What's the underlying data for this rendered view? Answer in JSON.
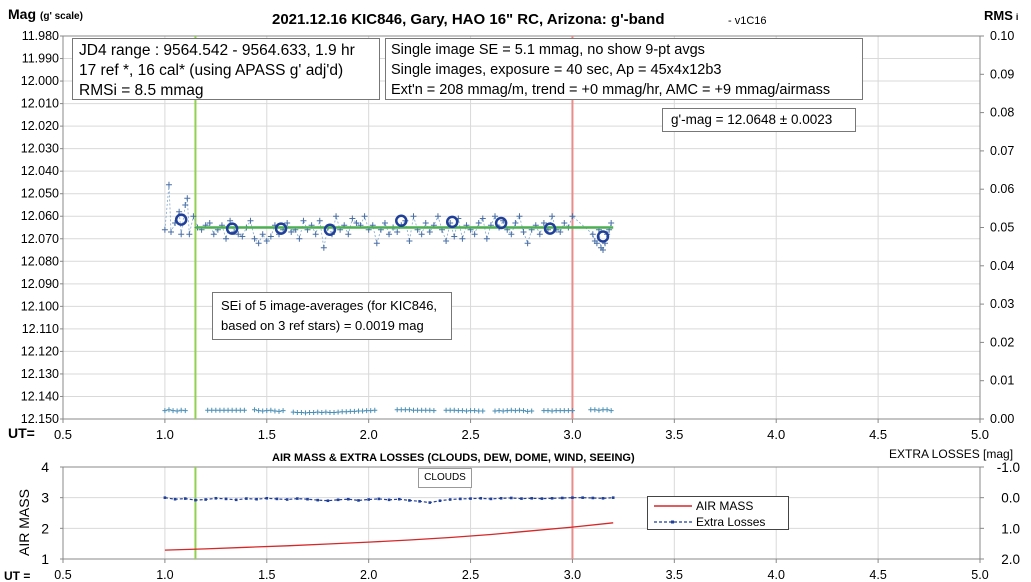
{
  "chart_data": [
    {
      "type": "scatter",
      "title": "2021.12.16 KIC846, Gary, HAO 16\" RC, Arizona: g'-band",
      "version": "- v1C16",
      "ylabel": "Mag",
      "ylabel_sub": "(g' scale)",
      "y2label": "RMS",
      "y2label_sub": "i",
      "xlabel": "UT=",
      "xlim": [
        0.5,
        5.0
      ],
      "xticks": [
        "0.5",
        "1.0",
        "1.5",
        "2.0",
        "2.5",
        "3.0",
        "3.5",
        "4.0",
        "4.5",
        "5.0"
      ],
      "ylim": [
        11.98,
        12.15
      ],
      "y_reversed": true,
      "yticks": [
        "11.980",
        "11.990",
        "12.000",
        "12.010",
        "12.020",
        "12.030",
        "12.040",
        "12.050",
        "12.060",
        "12.070",
        "12.080",
        "12.090",
        "12.100",
        "12.110",
        "12.120",
        "12.130",
        "12.140",
        "12.150"
      ],
      "y2lim": [
        0.0,
        0.1
      ],
      "y2ticks": [
        "0.10",
        "0.09",
        "0.08",
        "0.07",
        "0.06",
        "0.05",
        "0.04",
        "0.03",
        "0.02",
        "0.01",
        "0.00"
      ],
      "vlines": [
        {
          "x": 1.15,
          "color": "#92d050"
        },
        {
          "x": 3.0,
          "color": "#e98c8c"
        }
      ],
      "fit_line": {
        "x": [
          1.15,
          3.2
        ],
        "y": [
          12.065,
          12.065
        ],
        "color": "#4caf50"
      },
      "series": [
        {
          "kind": "single_images",
          "color": "#4a6fa5",
          "x": [
            1.0,
            1.02,
            1.03,
            1.05,
            1.07,
            1.08,
            1.1,
            1.11,
            1.12,
            1.14,
            1.16,
            1.18,
            1.2,
            1.22,
            1.24,
            1.26,
            1.28,
            1.3,
            1.32,
            1.34,
            1.36,
            1.38,
            1.4,
            1.42,
            1.44,
            1.46,
            1.48,
            1.5,
            1.52,
            1.54,
            1.56,
            1.58,
            1.6,
            1.62,
            1.64,
            1.66,
            1.68,
            1.7,
            1.72,
            1.74,
            1.76,
            1.78,
            1.8,
            1.82,
            1.84,
            1.86,
            1.88,
            1.9,
            1.92,
            1.94,
            1.96,
            1.98,
            2.0,
            2.02,
            2.04,
            2.06,
            2.08,
            2.1,
            2.12,
            2.14,
            2.16,
            2.18,
            2.2,
            2.22,
            2.24,
            2.26,
            2.28,
            2.3,
            2.32,
            2.34,
            2.36,
            2.38,
            2.4,
            2.42,
            2.44,
            2.46,
            2.48,
            2.5,
            2.52,
            2.54,
            2.56,
            2.58,
            2.6,
            2.62,
            2.64,
            2.66,
            2.68,
            2.7,
            2.72,
            2.74,
            2.76,
            2.78,
            2.8,
            2.82,
            2.84,
            2.86,
            2.88,
            2.9,
            2.92,
            2.94,
            2.96,
            2.98,
            3.0,
            3.1,
            3.11,
            3.12,
            3.13,
            3.14,
            3.15,
            3.16,
            3.17,
            3.18,
            3.19
          ],
          "y": [
            12.066,
            12.046,
            12.067,
            12.063,
            12.058,
            12.068,
            12.055,
            12.052,
            12.068,
            12.06,
            12.065,
            12.066,
            12.064,
            12.063,
            12.068,
            12.066,
            12.064,
            12.07,
            12.062,
            12.067,
            12.068,
            12.069,
            12.065,
            12.062,
            12.07,
            12.072,
            12.068,
            12.071,
            12.069,
            12.064,
            12.068,
            12.066,
            12.063,
            12.067,
            12.066,
            12.07,
            12.062,
            12.066,
            12.064,
            12.068,
            12.062,
            12.074,
            12.065,
            12.068,
            12.06,
            12.066,
            12.064,
            12.068,
            12.061,
            12.063,
            12.064,
            12.06,
            12.066,
            12.064,
            12.072,
            12.066,
            12.063,
            12.068,
            12.065,
            12.067,
            12.064,
            12.062,
            12.071,
            12.06,
            12.066,
            12.068,
            12.063,
            12.067,
            12.064,
            12.06,
            12.066,
            12.071,
            12.063,
            12.069,
            12.061,
            12.07,
            12.064,
            12.066,
            12.068,
            12.063,
            12.061,
            12.07,
            12.064,
            12.06,
            12.065,
            12.062,
            12.066,
            12.068,
            12.063,
            12.06,
            12.067,
            12.072,
            12.066,
            12.064,
            12.068,
            12.063,
            12.066,
            12.06,
            12.066,
            12.067,
            12.063,
            12.065,
            12.06,
            12.068,
            12.071,
            12.072,
            12.066,
            12.074,
            12.075,
            12.072,
            12.068,
            12.066,
            12.063
          ]
        },
        {
          "kind": "9pt_averages",
          "color": "#1f3f99",
          "x": [
            1.08,
            1.33,
            1.57,
            1.81,
            2.16,
            2.41,
            2.65,
            2.89,
            3.15
          ],
          "y": [
            12.0615,
            12.0655,
            12.0655,
            12.066,
            12.062,
            12.0625,
            12.063,
            12.0655,
            12.069
          ]
        },
        {
          "kind": "rms_i",
          "axis": "y2",
          "color": "#4a8fb5",
          "x": [
            1.0,
            1.02,
            1.04,
            1.06,
            1.08,
            1.1,
            1.21,
            1.23,
            1.25,
            1.27,
            1.29,
            1.31,
            1.33,
            1.35,
            1.37,
            1.39,
            1.44,
            1.46,
            1.48,
            1.5,
            1.52,
            1.54,
            1.56,
            1.58,
            1.63,
            1.65,
            1.67,
            1.69,
            1.71,
            1.73,
            1.75,
            1.77,
            1.79,
            1.81,
            1.83,
            1.85,
            1.87,
            1.89,
            1.91,
            1.93,
            1.95,
            1.97,
            1.99,
            2.01,
            2.03,
            2.14,
            2.16,
            2.18,
            2.2,
            2.22,
            2.24,
            2.26,
            2.28,
            2.3,
            2.32,
            2.38,
            2.4,
            2.42,
            2.44,
            2.46,
            2.48,
            2.5,
            2.52,
            2.54,
            2.56,
            2.62,
            2.64,
            2.66,
            2.68,
            2.7,
            2.72,
            2.74,
            2.76,
            2.78,
            2.8,
            2.86,
            2.88,
            2.9,
            2.92,
            2.94,
            2.96,
            2.98,
            3.0,
            3.09,
            3.11,
            3.13,
            3.15,
            3.17,
            3.19
          ],
          "y": [
            0.0022,
            0.0024,
            0.0022,
            0.0021,
            0.0023,
            0.0022,
            0.0023,
            0.0023,
            0.0023,
            0.0023,
            0.0023,
            0.0023,
            0.0023,
            0.0023,
            0.0023,
            0.0023,
            0.0024,
            0.0022,
            0.0021,
            0.0022,
            0.0023,
            0.0021,
            0.002,
            0.0022,
            0.0018,
            0.0017,
            0.0017,
            0.0016,
            0.0017,
            0.0017,
            0.0018,
            0.0017,
            0.0018,
            0.0017,
            0.0017,
            0.0018,
            0.0019,
            0.0019,
            0.002,
            0.002,
            0.0021,
            0.0021,
            0.0022,
            0.0022,
            0.0023,
            0.0024,
            0.0024,
            0.0024,
            0.0024,
            0.0023,
            0.0023,
            0.0023,
            0.0023,
            0.0023,
            0.0022,
            0.0023,
            0.0023,
            0.0023,
            0.0022,
            0.0022,
            0.0021,
            0.0022,
            0.0022,
            0.0021,
            0.0021,
            0.0021,
            0.0022,
            0.0021,
            0.0022,
            0.0023,
            0.0022,
            0.0023,
            0.0022,
            0.002,
            0.0021,
            0.0022,
            0.0022,
            0.0021,
            0.0022,
            0.0022,
            0.0022,
            0.0022,
            0.0022,
            0.0024,
            0.0024,
            0.0023,
            0.0024,
            0.0024,
            0.0022
          ]
        }
      ]
    },
    {
      "type": "line",
      "title": "AIR MASS & EXTRA LOSSES (CLOUDS, DEW, DOME, WIND, SEEING)",
      "ylabel": "AIR MASS",
      "y2label": "EXTRA LOSSES [mag]",
      "xlabel": "UT =",
      "xlim": [
        0.5,
        5.0
      ],
      "xticks": [
        "0.5",
        "1.0",
        "1.5",
        "2.0",
        "2.5",
        "3.0",
        "3.5",
        "4.0",
        "4.5",
        "5.0"
      ],
      "ylim": [
        1,
        4
      ],
      "yticks": [
        "4",
        "3",
        "2",
        "1"
      ],
      "y2lim": [
        -1.0,
        2.0
      ],
      "y2_reversed": true,
      "y2ticks": [
        "-1.0",
        "0.0",
        "1.0",
        "2.0"
      ],
      "vlines": [
        {
          "x": 1.15,
          "color": "#92d050"
        },
        {
          "x": 3.0,
          "color": "#e98c8c"
        }
      ],
      "series": [
        {
          "name": "AIR MASS",
          "color": "#d62728",
          "x": [
            1.0,
            1.2,
            1.4,
            1.6,
            1.8,
            2.0,
            2.2,
            2.4,
            2.6,
            2.8,
            3.0,
            3.2
          ],
          "y": [
            1.29,
            1.33,
            1.38,
            1.43,
            1.49,
            1.55,
            1.62,
            1.7,
            1.8,
            1.92,
            2.04,
            2.18
          ]
        },
        {
          "name": "Extra Losses",
          "color": "#1f3f99",
          "axis": "y2",
          "x": [
            1.0,
            1.05,
            1.1,
            1.15,
            1.2,
            1.25,
            1.3,
            1.35,
            1.4,
            1.45,
            1.5,
            1.55,
            1.6,
            1.65,
            1.7,
            1.75,
            1.8,
            1.85,
            1.9,
            1.95,
            2.0,
            2.05,
            2.1,
            2.15,
            2.2,
            2.25,
            2.3,
            2.35,
            2.4,
            2.45,
            2.5,
            2.55,
            2.6,
            2.65,
            2.7,
            2.75,
            2.8,
            2.85,
            2.9,
            2.95,
            3.0,
            3.05,
            3.1,
            3.15,
            3.2
          ],
          "y": [
            0.0,
            0.05,
            0.03,
            0.08,
            0.06,
            0.02,
            0.04,
            0.07,
            0.03,
            0.05,
            0.02,
            0.04,
            0.06,
            0.03,
            0.05,
            0.08,
            0.1,
            0.07,
            0.05,
            0.09,
            0.06,
            0.04,
            0.07,
            0.05,
            0.09,
            0.12,
            0.16,
            0.1,
            0.06,
            0.04,
            0.03,
            0.02,
            0.04,
            0.02,
            0.01,
            0.03,
            0.02,
            0.03,
            0.02,
            0.01,
            0.0,
            0.0,
            0.01,
            0.02,
            0.0
          ]
        }
      ],
      "legend": "right",
      "annotation": "CLOUDS"
    }
  ],
  "boxes": {
    "jd": {
      "line1": "JD4 range : 9564.542 - 9564.633,  1.9  hr",
      "line2": "17 ref *, 16 cal* (using APASS g' adj'd)",
      "line3": "RMSi = 8.5 mmag"
    },
    "se": {
      "line1": "Single image SE = 5.1 mmag, no show  9-pt avgs",
      "line2": "Single images, exposure = 40 sec, Ap = 45x4x12b3",
      "line3": "Ext'n = 208 mmag/m, trend = +0 mmag/hr, AMC = +9 mmag/airmass"
    },
    "gmag": "g'-mag = 12.0648 ± 0.0023",
    "sei": {
      "line1": "SEi of 5 image-averages (for KIC846,",
      "line2": "based on 3 ref stars) = 0.0019 mag"
    },
    "clouds": "CLOUDS",
    "legend": {
      "item1": "AIR MASS",
      "item2": "Extra Losses"
    }
  }
}
